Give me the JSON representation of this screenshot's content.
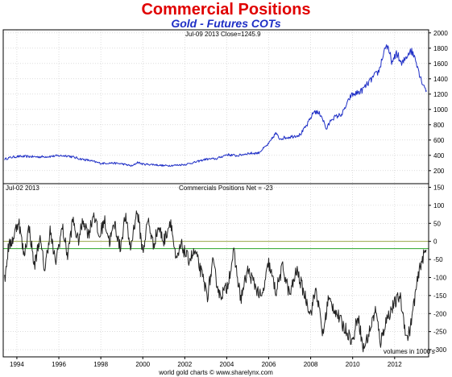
{
  "title": "Commercial Positions",
  "subtitle": "Gold - Futures COTs",
  "colors": {
    "title": "#e00000",
    "subtitle": "#1f2fc6",
    "price_line": "#1f2fc6",
    "cot_line": "#222222",
    "ref_line_green": "#2aa62a",
    "ref_line_olive": "#9aa84a"
  },
  "footer_credit": "world gold charts © www.sharelynx.com",
  "chart_data": [
    {
      "type": "line",
      "header": "Jul-09 2013   Close=1245.9",
      "series": [
        {
          "values": [
            [
              "1993-06-01",
              350
            ],
            [
              "1993-09-01",
              370
            ],
            [
              "1994-01-01",
              385
            ],
            [
              "1994-07-01",
              385
            ],
            [
              "1995-01-01",
              380
            ],
            [
              "1995-07-01",
              385
            ],
            [
              "1996-01-01",
              395
            ],
            [
              "1996-06-01",
              395
            ],
            [
              "1997-01-01",
              355
            ],
            [
              "1997-07-01",
              330
            ],
            [
              "1998-01-01",
              295
            ],
            [
              "1998-07-01",
              300
            ],
            [
              "1999-01-01",
              290
            ],
            [
              "1999-07-01",
              260
            ],
            [
              "1999-10-01",
              310
            ],
            [
              "2000-01-01",
              285
            ],
            [
              "2000-07-01",
              280
            ],
            [
              "2001-01-01",
              265
            ],
            [
              "2001-07-01",
              270
            ],
            [
              "2002-01-01",
              280
            ],
            [
              "2002-07-01",
              310
            ],
            [
              "2003-01-01",
              350
            ],
            [
              "2003-07-01",
              355
            ],
            [
              "2004-01-01",
              410
            ],
            [
              "2004-07-01",
              395
            ],
            [
              "2005-01-01",
              425
            ],
            [
              "2005-07-01",
              430
            ],
            [
              "2006-01-01",
              550
            ],
            [
              "2006-05-01",
              690
            ],
            [
              "2006-07-01",
              620
            ],
            [
              "2007-01-01",
              640
            ],
            [
              "2007-07-01",
              670
            ],
            [
              "2007-11-01",
              800
            ],
            [
              "2008-03-01",
              980
            ],
            [
              "2008-07-01",
              930
            ],
            [
              "2008-10-01",
              740
            ],
            [
              "2009-01-01",
              880
            ],
            [
              "2009-07-01",
              940
            ],
            [
              "2009-12-01",
              1180
            ],
            [
              "2010-06-01",
              1240
            ],
            [
              "2010-12-01",
              1400
            ],
            [
              "2011-04-01",
              1500
            ],
            [
              "2011-08-01",
              1850
            ],
            [
              "2011-12-01",
              1600
            ],
            [
              "2012-02-01",
              1750
            ],
            [
              "2012-05-01",
              1580
            ],
            [
              "2012-10-01",
              1780
            ],
            [
              "2013-01-01",
              1670
            ],
            [
              "2013-04-01",
              1400
            ],
            [
              "2013-07-09",
              1245.9
            ]
          ]
        }
      ],
      "y_ticks": [
        200,
        400,
        600,
        800,
        1000,
        1200,
        1400,
        1600,
        1800,
        2000
      ],
      "ylim": [
        30,
        2040
      ],
      "grid": true
    },
    {
      "type": "line",
      "header_left": "Jul-02 2013",
      "header_center": "Commercials Positions Net = -23",
      "note": "volumes in 1000's",
      "series": [
        {
          "values": [
            [
              "1993-06-01",
              -110
            ],
            [
              "1993-08-01",
              -20
            ],
            [
              "1993-11-01",
              10
            ],
            [
              "1994-02-01",
              60
            ],
            [
              "1994-05-01",
              -40
            ],
            [
              "1994-08-01",
              40
            ],
            [
              "1994-11-01",
              -70
            ],
            [
              "1995-02-01",
              10
            ],
            [
              "1995-05-01",
              -80
            ],
            [
              "1995-08-01",
              30
            ],
            [
              "1995-11-01",
              -60
            ],
            [
              "1996-03-01",
              40
            ],
            [
              "1996-06-01",
              -40
            ],
            [
              "1996-09-01",
              60
            ],
            [
              "1996-12-01",
              0
            ],
            [
              "1997-03-01",
              60
            ],
            [
              "1997-06-01",
              20
            ],
            [
              "1997-09-01",
              80
            ],
            [
              "1997-12-01",
              10
            ],
            [
              "1998-03-01",
              60
            ],
            [
              "1998-06-01",
              0
            ],
            [
              "1998-09-01",
              50
            ],
            [
              "1998-12-01",
              -20
            ],
            [
              "1999-03-01",
              70
            ],
            [
              "1999-06-01",
              -20
            ],
            [
              "1999-09-01",
              70
            ],
            [
              "1999-10-01",
              80
            ],
            [
              "2000-01-01",
              -30
            ],
            [
              "2000-04-01",
              60
            ],
            [
              "2000-07-01",
              -10
            ],
            [
              "2000-10-01",
              40
            ],
            [
              "2001-01-01",
              0
            ],
            [
              "2001-05-01",
              60
            ],
            [
              "2001-08-01",
              -60
            ],
            [
              "2001-11-01",
              -10
            ],
            [
              "2002-03-01",
              -50
            ],
            [
              "2002-07-01",
              -30
            ],
            [
              "2002-10-01",
              -80
            ],
            [
              "2003-02-01",
              -150
            ],
            [
              "2003-05-01",
              -60
            ],
            [
              "2003-09-01",
              -150
            ],
            [
              "2004-01-01",
              -130
            ],
            [
              "2004-05-01",
              -30
            ],
            [
              "2004-09-01",
              -160
            ],
            [
              "2005-01-01",
              -80
            ],
            [
              "2005-05-01",
              -120
            ],
            [
              "2005-09-01",
              -160
            ],
            [
              "2006-01-01",
              -60
            ],
            [
              "2006-05-01",
              -140
            ],
            [
              "2006-09-01",
              -70
            ],
            [
              "2007-01-01",
              -150
            ],
            [
              "2007-05-01",
              -80
            ],
            [
              "2007-09-01",
              -140
            ],
            [
              "2008-01-01",
              -200
            ],
            [
              "2008-04-01",
              -130
            ],
            [
              "2008-08-01",
              -260
            ],
            [
              "2008-11-01",
              -160
            ],
            [
              "2009-03-01",
              -190
            ],
            [
              "2009-07-01",
              -230
            ],
            [
              "2009-10-01",
              -250
            ],
            [
              "2010-01-01",
              -280
            ],
            [
              "2010-04-01",
              -200
            ],
            [
              "2010-07-01",
              -300
            ],
            [
              "2010-10-01",
              -260
            ],
            [
              "2011-02-01",
              -190
            ],
            [
              "2011-05-01",
              -280
            ],
            [
              "2011-08-01",
              -220
            ],
            [
              "2011-12-01",
              -180
            ],
            [
              "2012-04-01",
              -150
            ],
            [
              "2012-08-01",
              -270
            ],
            [
              "2012-10-01",
              -240
            ],
            [
              "2013-01-01",
              -140
            ],
            [
              "2013-04-01",
              -60
            ],
            [
              "2013-07-02",
              -23
            ]
          ]
        }
      ],
      "y_ticks": [
        -300,
        -250,
        -200,
        -150,
        -100,
        -50,
        0,
        50,
        100,
        150
      ],
      "ylim": [
        -320,
        160
      ],
      "grid": true,
      "reference_lines": [
        0,
        -20
      ]
    }
  ],
  "x_axis": {
    "ticks": [
      "1994",
      "1996",
      "1998",
      "2000",
      "2002",
      "2004",
      "2006",
      "2008",
      "2010",
      "2012"
    ]
  }
}
